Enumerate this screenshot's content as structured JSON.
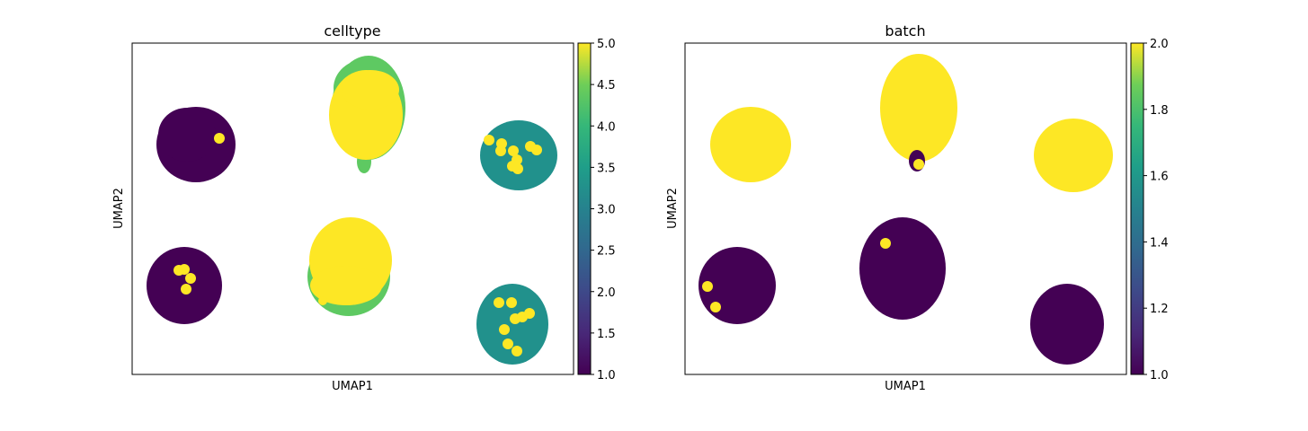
{
  "chart_data": [
    {
      "type": "scatter",
      "title": "celltype",
      "xlabel": "UMAP1",
      "ylabel": "UMAP2",
      "x_ticks": "none",
      "y_ticks": "none",
      "colormap": "viridis",
      "colorbar": {
        "min": 1.0,
        "max": 5.0,
        "ticks": [
          "1.0",
          "1.5",
          "2.0",
          "2.5",
          "3.0",
          "3.5",
          "4.0",
          "4.5",
          "5.0"
        ]
      },
      "clusters": [
        {
          "label": "top-left",
          "value": 1.0
        },
        {
          "label": "bottom-left",
          "value": 1.0
        },
        {
          "label": "top-center",
          "value": 4.0
        },
        {
          "label": "bottom-center",
          "value": 4.0
        },
        {
          "label": "top-right",
          "value": 3.0
        },
        {
          "label": "bottom-right",
          "value": 3.0
        }
      ],
      "overlay_value": 5.0
    },
    {
      "type": "scatter",
      "title": "batch",
      "xlabel": "UMAP1",
      "ylabel": "UMAP2",
      "x_ticks": "none",
      "y_ticks": "none",
      "colormap": "viridis",
      "colorbar": {
        "min": 1.0,
        "max": 2.0,
        "ticks": [
          "1.0",
          "1.2",
          "1.4",
          "1.6",
          "1.8",
          "2.0"
        ]
      },
      "clusters": [
        {
          "label": "top-left",
          "value": 2.0
        },
        {
          "label": "top-center",
          "value": 2.0
        },
        {
          "label": "top-right",
          "value": 2.0
        },
        {
          "label": "bottom-left",
          "value": 1.0
        },
        {
          "label": "bottom-center",
          "value": 1.0
        },
        {
          "label": "bottom-right",
          "value": 1.0
        }
      ]
    }
  ],
  "colors": {
    "viridis_low": "#440154",
    "viridis_mid": "#21918c",
    "viridis_green": "#5ec962",
    "viridis_high": "#fde725"
  }
}
